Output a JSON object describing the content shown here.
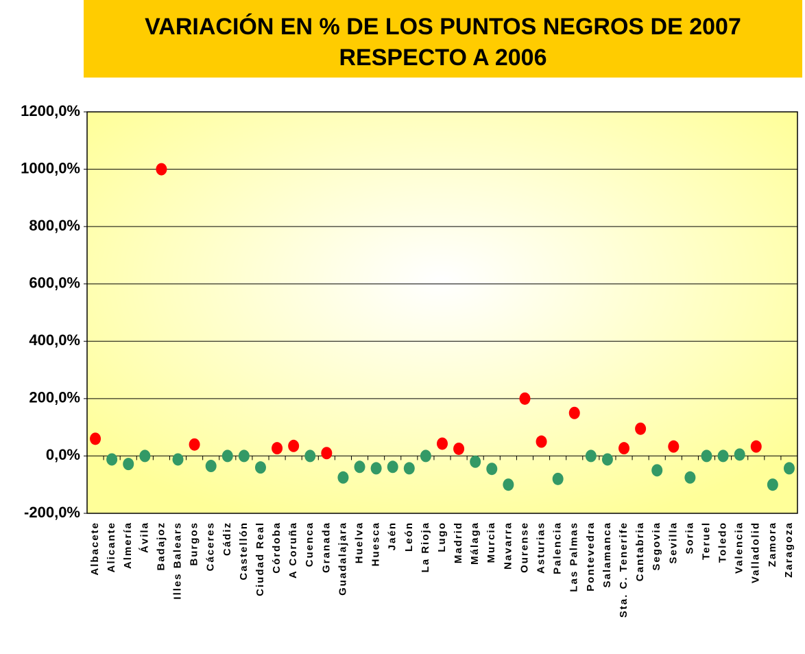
{
  "chart_data": {
    "type": "dot",
    "title": [
      "VARIACIÓN EN % DE LOS PUNTOS NEGROS DE 2007",
      "RESPECTO A 2006"
    ],
    "categories": [
      "Albacete",
      "Alicante",
      "Almería",
      "Ávila",
      "Badajoz",
      "Illes Balears",
      "Burgos",
      "Cáceres",
      "Cádiz",
      "Castellón",
      "Ciudad Real",
      "Córdoba",
      "A Coruña",
      "Cuenca",
      "Granada",
      "Guadalajara",
      "Huelva",
      "Huesca",
      "Jaén",
      "León",
      "La Rioja",
      "Lugo",
      "Madrid",
      "Málaga",
      "Murcia",
      "Navarra",
      "Ourense",
      "Asturias",
      "Palencia",
      "Las Palmas",
      "Pontevedra",
      "Salamanca",
      "Sta. C. Tenerife",
      "Cantabria",
      "Segovia",
      "Sevilla",
      "Soria",
      "Teruel",
      "Toledo",
      "Valencia",
      "Valladolid",
      "Zamora",
      "Zaragoza"
    ],
    "values": [
      60,
      -12,
      -28,
      0,
      1000,
      -12,
      40,
      -35,
      0,
      0,
      -40,
      27,
      35,
      0,
      10,
      -75,
      -38,
      -43,
      -38,
      -43,
      0,
      43,
      25,
      -20,
      -45,
      -100,
      200,
      50,
      -80,
      150,
      0,
      -12,
      27,
      95,
      -50,
      33,
      -75,
      0,
      0,
      5,
      33,
      -100,
      -43
    ],
    "colors": [
      "#ff0000",
      "#339966",
      "#339966",
      "#339966",
      "#ff0000",
      "#339966",
      "#ff0000",
      "#339966",
      "#339966",
      "#339966",
      "#339966",
      "#ff0000",
      "#ff0000",
      "#339966",
      "#ff0000",
      "#339966",
      "#339966",
      "#339966",
      "#339966",
      "#339966",
      "#339966",
      "#ff0000",
      "#ff0000",
      "#339966",
      "#339966",
      "#339966",
      "#ff0000",
      "#ff0000",
      "#339966",
      "#ff0000",
      "#339966",
      "#339966",
      "#ff0000",
      "#ff0000",
      "#339966",
      "#ff0000",
      "#339966",
      "#339966",
      "#339966",
      "#339966",
      "#ff0000",
      "#339966",
      "#339966"
    ],
    "ylim": [
      -200,
      1200
    ],
    "yticks": [
      {
        "value": -200,
        "label": "-200,0%"
      },
      {
        "value": 0,
        "label": "0,0%"
      },
      {
        "value": 200,
        "label": "200,0%"
      },
      {
        "value": 400,
        "label": "400,0%"
      },
      {
        "value": 600,
        "label": "600,0%"
      },
      {
        "value": 800,
        "label": "800,0%"
      },
      {
        "value": 1000,
        "label": "1000,0%"
      },
      {
        "value": 1200,
        "label": "1200,0%"
      }
    ],
    "grid": true
  }
}
